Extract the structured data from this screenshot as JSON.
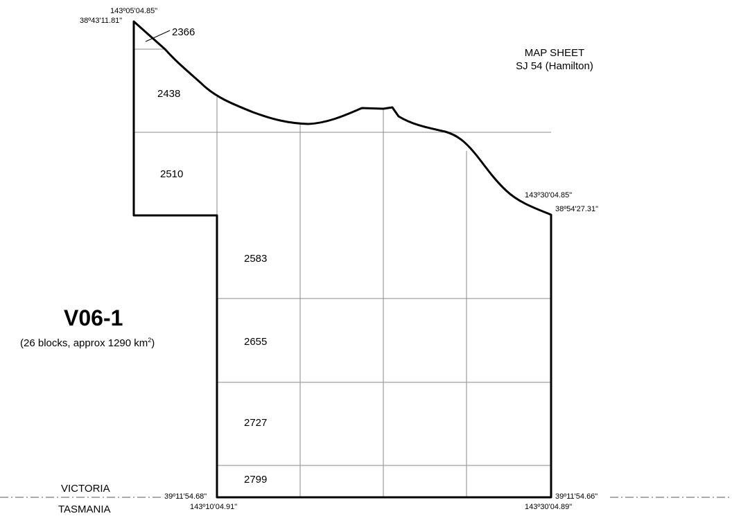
{
  "map_sheet": {
    "line1": "MAP SHEET",
    "line2": "SJ 54 (Hamilton)"
  },
  "area": {
    "name": "V06-1",
    "summary_prefix": "(26 blocks, approx  1290 km",
    "summary_sup": "2",
    "summary_suffix": ")"
  },
  "blocks": [
    "2366",
    "2438",
    "2510",
    "2583",
    "2655",
    "2727",
    "2799"
  ],
  "coordinates": {
    "top_left_lon": "143º05'04.85\"",
    "top_left_lat": "38º43'11.81\"",
    "right_lon": "143º30'04.85\"",
    "right_lat": "38º54'27.31\"",
    "bottom_left_lat": "39º11'54.68\"",
    "bottom_left_lon": "143º10'04.91\"",
    "bottom_right_lat": "39º11'54.66\"",
    "bottom_right_lon": "143º30'04.89\""
  },
  "states": {
    "north": "VICTORIA",
    "south": "TASMANIA"
  },
  "colors": {
    "boundary": "#000000",
    "grid": "#8a8a8a",
    "border_line": "#555555"
  }
}
